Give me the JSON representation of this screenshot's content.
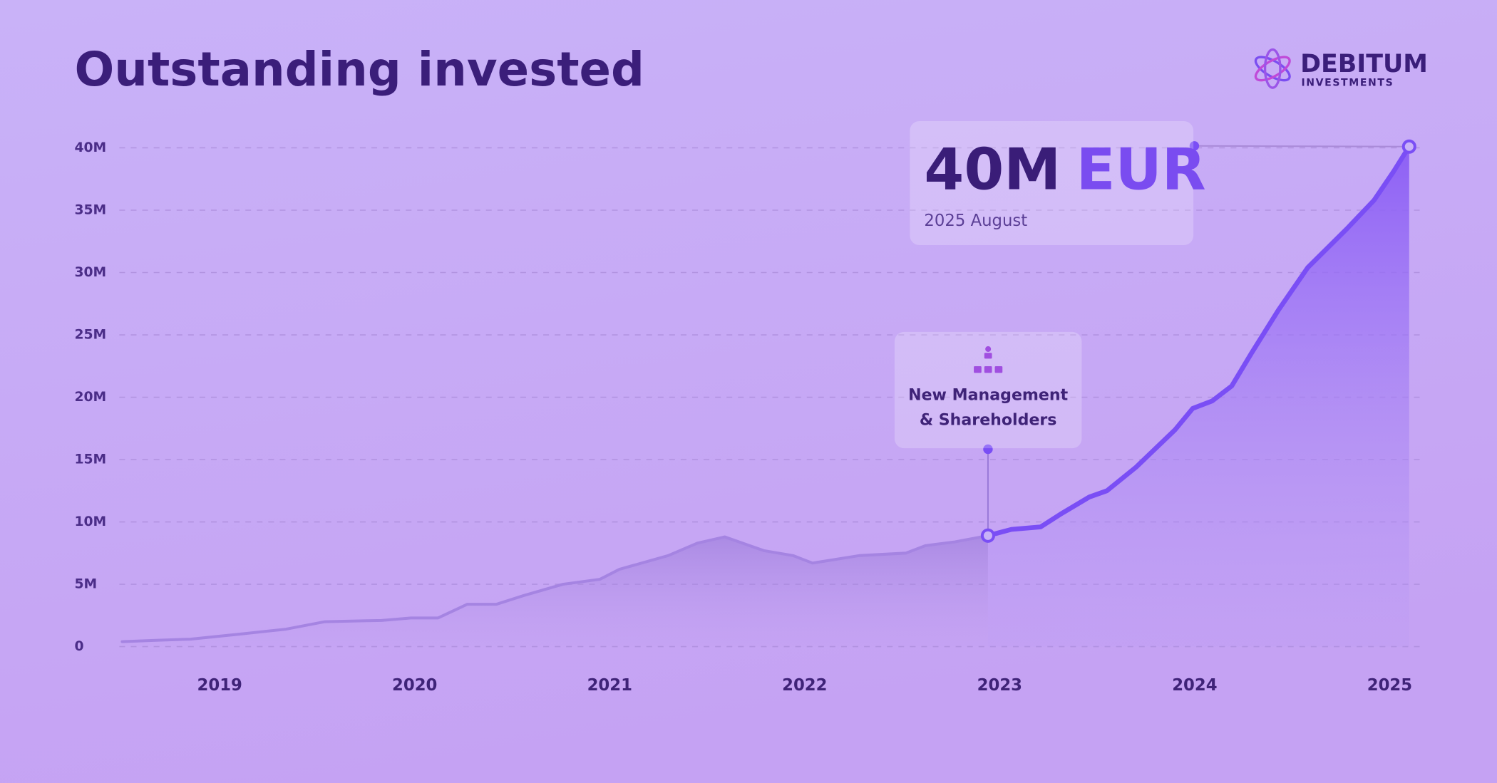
{
  "brand": {
    "name": "DEBITUM",
    "tagline": "INVESTMENTS"
  },
  "chart_data": {
    "type": "area",
    "title": "Outstanding invested",
    "xlim": [
      2018.5,
      2025.1
    ],
    "xticks": [
      2019,
      2020,
      2021,
      2022,
      2023,
      2024,
      2025
    ],
    "ylim": [
      0,
      40
    ],
    "yticks": [
      0,
      {
        "value": 5,
        "label": "5M"
      },
      {
        "value": 10,
        "label": "10M"
      },
      {
        "value": 15,
        "label": "15M"
      },
      {
        "value": 20,
        "label": "20M"
      },
      {
        "value": 25,
        "label": "25M"
      },
      {
        "value": 30,
        "label": "30M"
      },
      {
        "value": 35,
        "label": "35M"
      },
      {
        "value": 40,
        "label": "40M"
      }
    ],
    "grid": true,
    "series": [
      {
        "color": "#a584e2",
        "x": [
          2018.5,
          2018.66,
          2018.85,
          2019.1,
          2019.34,
          2019.54,
          2019.83,
          2019.98,
          2020.12,
          2020.27,
          2020.42,
          2020.56,
          2020.76,
          2020.95,
          2021.05,
          2021.3,
          2021.45,
          2021.59,
          2021.79,
          2021.94,
          2022.04,
          2022.28,
          2022.52,
          2022.62,
          2022.77,
          2022.94
        ],
        "values": [
          0.4,
          0.5,
          0.6,
          1.0,
          1.4,
          2.0,
          2.1,
          2.3,
          2.3,
          3.4,
          3.4,
          4.1,
          5.0,
          5.4,
          6.2,
          7.3,
          8.3,
          8.8,
          7.7,
          7.3,
          6.7,
          7.3,
          7.5,
          8.1,
          8.4,
          8.9
        ]
      },
      {
        "color": "#7a4ef5",
        "x": [
          2022.94,
          2023.06,
          2023.21,
          2023.31,
          2023.46,
          2023.55,
          2023.7,
          2023.9,
          2023.99,
          2024.09,
          2024.19,
          2024.29,
          2024.43,
          2024.58,
          2024.78,
          2024.92,
          2025.02,
          2025.1
        ],
        "values": [
          8.9,
          9.4,
          9.6,
          10.6,
          12.0,
          12.5,
          14.4,
          17.4,
          19.1,
          19.7,
          20.9,
          23.5,
          27.0,
          30.4,
          33.5,
          35.8,
          38.1,
          40.1
        ]
      }
    ],
    "annotations": {
      "total": {
        "value": "40M",
        "unit": "EUR",
        "date": "2025 August"
      },
      "event": [
        "New Management",
        "& Shareholders"
      ]
    }
  }
}
